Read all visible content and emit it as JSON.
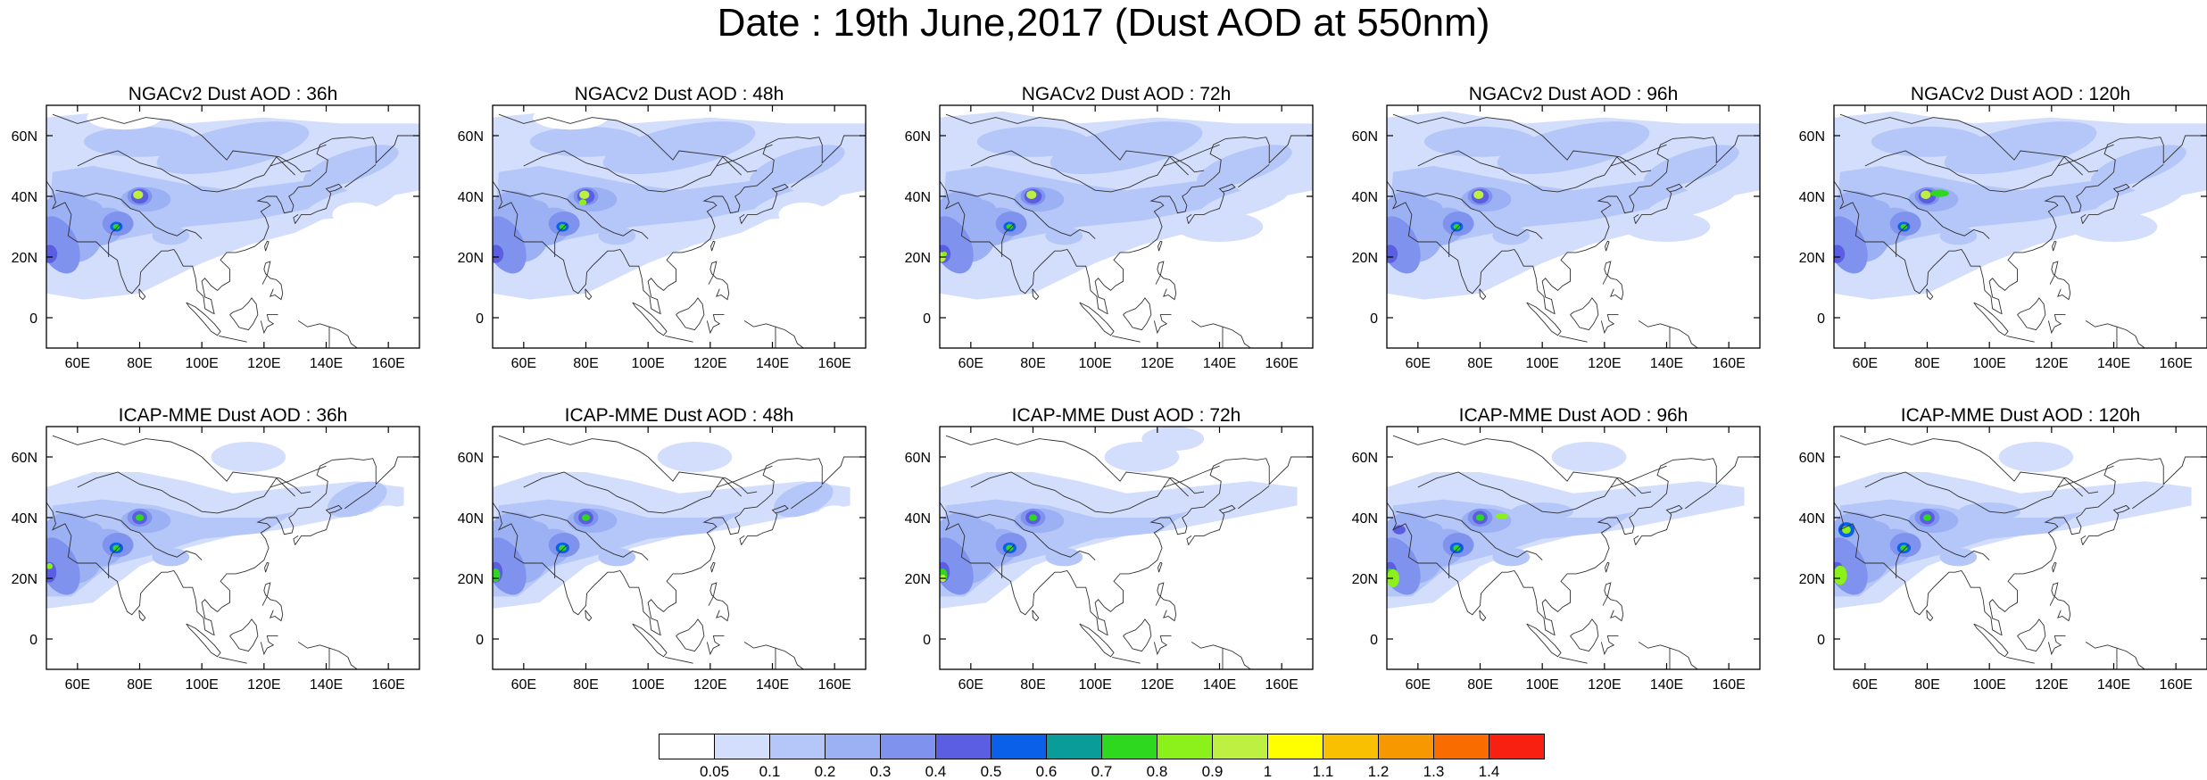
{
  "title": "Date : 19th June,2017 (Dust AOD at 550nm)",
  "panels": [
    {
      "title": "NGACv2 Dust AOD : 36h"
    },
    {
      "title": "NGACv2 Dust AOD : 48h"
    },
    {
      "title": "NGACv2 Dust AOD : 72h"
    },
    {
      "title": "NGACv2 Dust AOD : 96h"
    },
    {
      "title": "NGACv2 Dust AOD : 120h"
    },
    {
      "title": "ICAP-MME Dust AOD : 36h"
    },
    {
      "title": "ICAP-MME Dust AOD : 48h"
    },
    {
      "title": "ICAP-MME Dust AOD : 72h"
    },
    {
      "title": "ICAP-MME Dust AOD : 96h"
    },
    {
      "title": "ICAP-MME Dust AOD : 120h"
    }
  ],
  "map": {
    "lon_range": [
      50,
      170
    ],
    "lat_range": [
      -10,
      70
    ],
    "lon_ticks": [
      60,
      80,
      100,
      120,
      140,
      160
    ],
    "lon_tick_labels": [
      "60E",
      "80E",
      "100E",
      "120E",
      "140E",
      "160E"
    ],
    "lat_ticks": [
      0,
      20,
      40,
      60
    ],
    "lat_tick_labels": [
      "0",
      "20N",
      "40N",
      "60N"
    ]
  },
  "colorbar": {
    "labels": [
      "0.05",
      "0.1",
      "0.2",
      "0.3",
      "0.4",
      "0.5",
      "0.6",
      "0.7",
      "0.8",
      "0.9",
      "1",
      "1.1",
      "1.2",
      "1.3",
      "1.4"
    ],
    "colors": [
      "#ffffff",
      "#d3defc",
      "#b5c6f8",
      "#9cb1f4",
      "#7e92ee",
      "#5b5ee0",
      "#0a60e8",
      "#0a9c98",
      "#2ed81e",
      "#8cf01a",
      "#bdf040",
      "#ffff00",
      "#f8c000",
      "#f89800",
      "#f86c00",
      "#f82010"
    ]
  }
}
